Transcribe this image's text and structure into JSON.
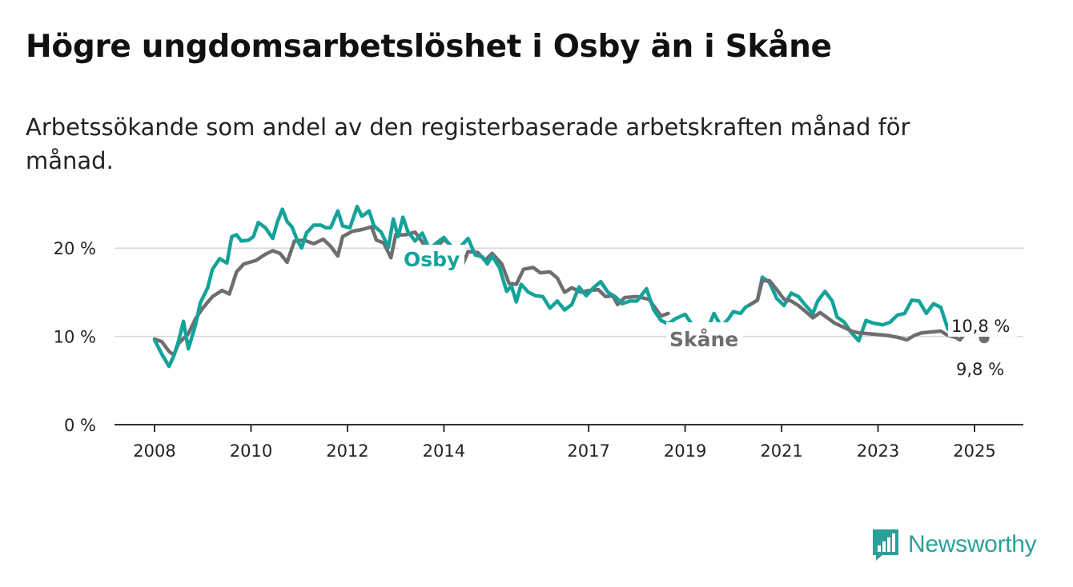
{
  "header": {
    "title": "Högre ungdomsarbetslöshet i Osby än i Skåne",
    "subtitle": "Arbetssökande som andel av den registerbaserade arbetskraften månad för månad."
  },
  "brand": {
    "name": "Newsworthy",
    "icon": "newsworthy-logo-icon",
    "color": "#2aa198"
  },
  "chart_data": {
    "type": "line",
    "x_unit": "year",
    "xlim": [
      2008,
      2026.0
    ],
    "ylim": [
      0,
      25
    ],
    "y_ticks": [
      {
        "value": 0,
        "label": "0 %"
      },
      {
        "value": 10,
        "label": "10 %"
      },
      {
        "value": 20,
        "label": "20 %"
      }
    ],
    "x_ticks": [
      {
        "value": 2008,
        "label": "2008"
      },
      {
        "value": 2010,
        "label": "2010"
      },
      {
        "value": 2012,
        "label": "2012"
      },
      {
        "value": 2014,
        "label": "2014"
      },
      {
        "value": 2017,
        "label": "2017"
      },
      {
        "value": 2019,
        "label": "2019"
      },
      {
        "value": 2021,
        "label": "2021"
      },
      {
        "value": 2023,
        "label": "2023"
      },
      {
        "value": 2025,
        "label": "2025"
      }
    ],
    "grid": true,
    "series": [
      {
        "name": "Skåne",
        "color": "#6e6e70",
        "end_label": "9,8 %",
        "points": [
          [
            2008.0,
            9.7
          ],
          [
            2008.15,
            9.4
          ],
          [
            2008.3,
            8.3
          ],
          [
            2008.4,
            7.9
          ],
          [
            2008.5,
            9.2
          ],
          [
            2008.7,
            10.3
          ],
          [
            2008.85,
            12.0
          ],
          [
            2009.0,
            13.2
          ],
          [
            2009.2,
            14.5
          ],
          [
            2009.4,
            15.2
          ],
          [
            2009.55,
            14.8
          ],
          [
            2009.7,
            17.3
          ],
          [
            2009.85,
            18.2
          ],
          [
            2010.1,
            18.6
          ],
          [
            2010.3,
            19.3
          ],
          [
            2010.45,
            19.7
          ],
          [
            2010.6,
            19.4
          ],
          [
            2010.75,
            18.4
          ],
          [
            2010.9,
            20.8
          ],
          [
            2011.1,
            20.9
          ],
          [
            2011.3,
            20.5
          ],
          [
            2011.5,
            21.0
          ],
          [
            2011.65,
            20.2
          ],
          [
            2011.8,
            19.1
          ],
          [
            2011.9,
            21.3
          ],
          [
            2012.1,
            21.9
          ],
          [
            2012.3,
            22.1
          ],
          [
            2012.5,
            22.4
          ],
          [
            2012.6,
            20.9
          ],
          [
            2012.75,
            20.6
          ],
          [
            2012.9,
            18.9
          ],
          [
            2013.0,
            21.5
          ],
          [
            2013.2,
            21.5
          ],
          [
            2013.4,
            21.8
          ],
          [
            2013.55,
            20.7
          ],
          [
            2013.7,
            19.1
          ],
          [
            2014.0,
            21.0
          ],
          [
            2014.2,
            20.0
          ],
          [
            2014.35,
            17.6
          ],
          [
            2014.5,
            19.6
          ],
          [
            2014.7,
            19.5
          ],
          [
            2014.85,
            18.6
          ],
          [
            2015.0,
            19.4
          ],
          [
            2015.2,
            18.2
          ],
          [
            2015.35,
            16.0
          ],
          [
            2015.5,
            15.9
          ],
          [
            2015.65,
            17.6
          ],
          [
            2015.85,
            17.8
          ],
          [
            2016.0,
            17.2
          ],
          [
            2016.2,
            17.3
          ],
          [
            2016.35,
            16.6
          ],
          [
            2016.5,
            15.0
          ],
          [
            2016.65,
            15.5
          ],
          [
            2016.85,
            15.0
          ],
          [
            2017.0,
            15.2
          ],
          [
            2017.2,
            15.3
          ],
          [
            2017.35,
            14.5
          ],
          [
            2017.5,
            14.6
          ],
          [
            2017.6,
            13.6
          ],
          [
            2017.75,
            14.4
          ],
          [
            2018.0,
            14.5
          ],
          [
            2018.25,
            14.2
          ],
          [
            2018.5,
            12.3
          ],
          [
            2018.65,
            12.6
          ]
        ]
      },
      {
        "name": "Osby",
        "color": "#14a39a",
        "end_label": "10,8 %",
        "points": [
          [
            2008.0,
            9.6
          ],
          [
            2008.15,
            8.0
          ],
          [
            2008.3,
            6.6
          ],
          [
            2008.4,
            7.8
          ],
          [
            2008.5,
            9.5
          ],
          [
            2008.6,
            11.7
          ],
          [
            2008.7,
            8.6
          ],
          [
            2008.85,
            11.3
          ],
          [
            2008.95,
            13.8
          ],
          [
            2009.1,
            15.5
          ],
          [
            2009.2,
            17.6
          ],
          [
            2009.35,
            18.8
          ],
          [
            2009.5,
            18.3
          ],
          [
            2009.6,
            21.3
          ],
          [
            2009.7,
            21.5
          ],
          [
            2009.8,
            20.8
          ],
          [
            2009.95,
            20.9
          ],
          [
            2010.05,
            21.3
          ],
          [
            2010.15,
            22.9
          ],
          [
            2010.3,
            22.3
          ],
          [
            2010.45,
            21.1
          ],
          [
            2010.55,
            23.0
          ],
          [
            2010.65,
            24.4
          ],
          [
            2010.75,
            23.0
          ],
          [
            2010.85,
            22.4
          ],
          [
            2010.95,
            21.0
          ],
          [
            2011.05,
            20.0
          ],
          [
            2011.15,
            21.7
          ],
          [
            2011.3,
            22.6
          ],
          [
            2011.45,
            22.6
          ],
          [
            2011.55,
            22.3
          ],
          [
            2011.65,
            22.3
          ],
          [
            2011.8,
            24.2
          ],
          [
            2011.9,
            22.5
          ],
          [
            2012.05,
            22.3
          ],
          [
            2012.2,
            24.7
          ],
          [
            2012.3,
            23.6
          ],
          [
            2012.45,
            24.2
          ],
          [
            2012.55,
            22.5
          ],
          [
            2012.7,
            21.8
          ],
          [
            2012.85,
            20.1
          ],
          [
            2012.95,
            23.3
          ],
          [
            2013.05,
            21.3
          ],
          [
            2013.15,
            23.5
          ],
          [
            2013.25,
            21.9
          ],
          [
            2013.4,
            20.8
          ],
          [
            2013.55,
            21.7
          ],
          [
            2013.7,
            19.9
          ],
          [
            2013.85,
            20.6
          ],
          [
            2014.0,
            21.2
          ],
          [
            2014.15,
            20.2
          ],
          [
            2014.3,
            19.9
          ],
          [
            2014.5,
            21.1
          ],
          [
            2014.65,
            19.2
          ],
          [
            2014.8,
            19.0
          ],
          [
            2014.9,
            18.2
          ],
          [
            2015.0,
            19.1
          ],
          [
            2015.15,
            17.8
          ],
          [
            2015.3,
            15.1
          ],
          [
            2015.4,
            15.7
          ],
          [
            2015.5,
            13.9
          ],
          [
            2015.6,
            15.9
          ],
          [
            2015.75,
            15.0
          ],
          [
            2015.9,
            14.6
          ],
          [
            2016.05,
            14.5
          ],
          [
            2016.2,
            13.2
          ],
          [
            2016.35,
            14.0
          ],
          [
            2016.5,
            13.0
          ],
          [
            2016.65,
            13.6
          ],
          [
            2016.8,
            15.6
          ],
          [
            2016.95,
            14.6
          ],
          [
            2017.1,
            15.5
          ],
          [
            2017.25,
            16.2
          ],
          [
            2017.4,
            15.0
          ],
          [
            2017.55,
            14.5
          ],
          [
            2017.7,
            13.7
          ],
          [
            2017.85,
            14.0
          ],
          [
            2018.0,
            14.0
          ],
          [
            2018.2,
            15.4
          ],
          [
            2018.35,
            13.0
          ],
          [
            2018.5,
            11.8
          ],
          [
            2018.65,
            11.4
          ],
          [
            2018.8,
            12.0
          ],
          [
            2019.0,
            12.5
          ],
          [
            2019.15,
            11.3
          ],
          [
            2019.3,
            10.3
          ],
          [
            2019.45,
            10.6
          ],
          [
            2019.6,
            12.6
          ],
          [
            2019.75,
            11.1
          ],
          [
            2019.9,
            12.0
          ],
          [
            2020.0,
            12.8
          ],
          [
            2020.15,
            12.6
          ],
          [
            2020.25,
            13.3
          ],
          [
            2020.35,
            13.6
          ],
          [
            2020.5,
            14.1
          ],
          [
            2020.6,
            16.7
          ],
          [
            2020.75,
            16.1
          ],
          [
            2020.9,
            14.3
          ],
          [
            2021.05,
            13.5
          ],
          [
            2021.2,
            14.9
          ],
          [
            2021.35,
            14.5
          ],
          [
            2021.5,
            13.5
          ],
          [
            2021.65,
            12.6
          ],
          [
            2021.75,
            14.0
          ],
          [
            2021.9,
            15.1
          ],
          [
            2022.05,
            14.0
          ],
          [
            2022.15,
            12.2
          ],
          [
            2022.3,
            11.6
          ],
          [
            2022.45,
            10.4
          ],
          [
            2022.6,
            9.5
          ],
          [
            2022.75,
            11.8
          ],
          [
            2022.9,
            11.5
          ],
          [
            2023.1,
            11.3
          ],
          [
            2023.25,
            11.6
          ],
          [
            2023.4,
            12.4
          ],
          [
            2023.55,
            12.6
          ],
          [
            2023.7,
            14.1
          ],
          [
            2023.85,
            14.0
          ],
          [
            2024.0,
            12.6
          ],
          [
            2024.15,
            13.7
          ],
          [
            2024.3,
            13.3
          ],
          [
            2024.45,
            10.8
          ],
          [
            2024.6,
            11.5
          ],
          [
            2024.75,
            12.0
          ],
          [
            2024.9,
            11.4
          ],
          [
            2025.1,
            11.3
          ],
          [
            2025.2,
            10.8
          ]
        ]
      },
      {
        "name": "Skåne",
        "color": "#6e6e70",
        "points": [
          [
            2020.35,
            13.6
          ],
          [
            2020.5,
            14.1
          ],
          [
            2020.6,
            16.3
          ],
          [
            2020.75,
            16.3
          ],
          [
            2020.9,
            15.3
          ],
          [
            2021.05,
            14.2
          ],
          [
            2021.2,
            14.0
          ],
          [
            2021.35,
            13.5
          ],
          [
            2021.5,
            12.8
          ],
          [
            2021.65,
            12.1
          ],
          [
            2021.8,
            12.7
          ],
          [
            2021.95,
            12.1
          ],
          [
            2022.1,
            11.5
          ],
          [
            2022.3,
            11.0
          ],
          [
            2022.45,
            10.6
          ],
          [
            2022.6,
            10.4
          ],
          [
            2022.8,
            10.3
          ],
          [
            2023.0,
            10.2
          ],
          [
            2023.2,
            10.1
          ],
          [
            2023.4,
            9.9
          ],
          [
            2023.6,
            9.6
          ],
          [
            2023.75,
            10.1
          ],
          [
            2023.9,
            10.4
          ],
          [
            2024.1,
            10.5
          ],
          [
            2024.3,
            10.6
          ],
          [
            2024.45,
            10.1
          ],
          [
            2024.6,
            9.9
          ],
          [
            2024.7,
            9.6
          ],
          [
            2024.8,
            10.3
          ],
          [
            2024.95,
            10.8
          ],
          [
            2025.1,
            10.6
          ],
          [
            2025.2,
            9.8
          ]
        ]
      }
    ],
    "inline_labels": [
      {
        "text": "Osby",
        "series": "Osby",
        "color": "#14a39a"
      },
      {
        "text": "Skåne",
        "series": "Skåne",
        "color": "#6e6e70"
      }
    ]
  }
}
